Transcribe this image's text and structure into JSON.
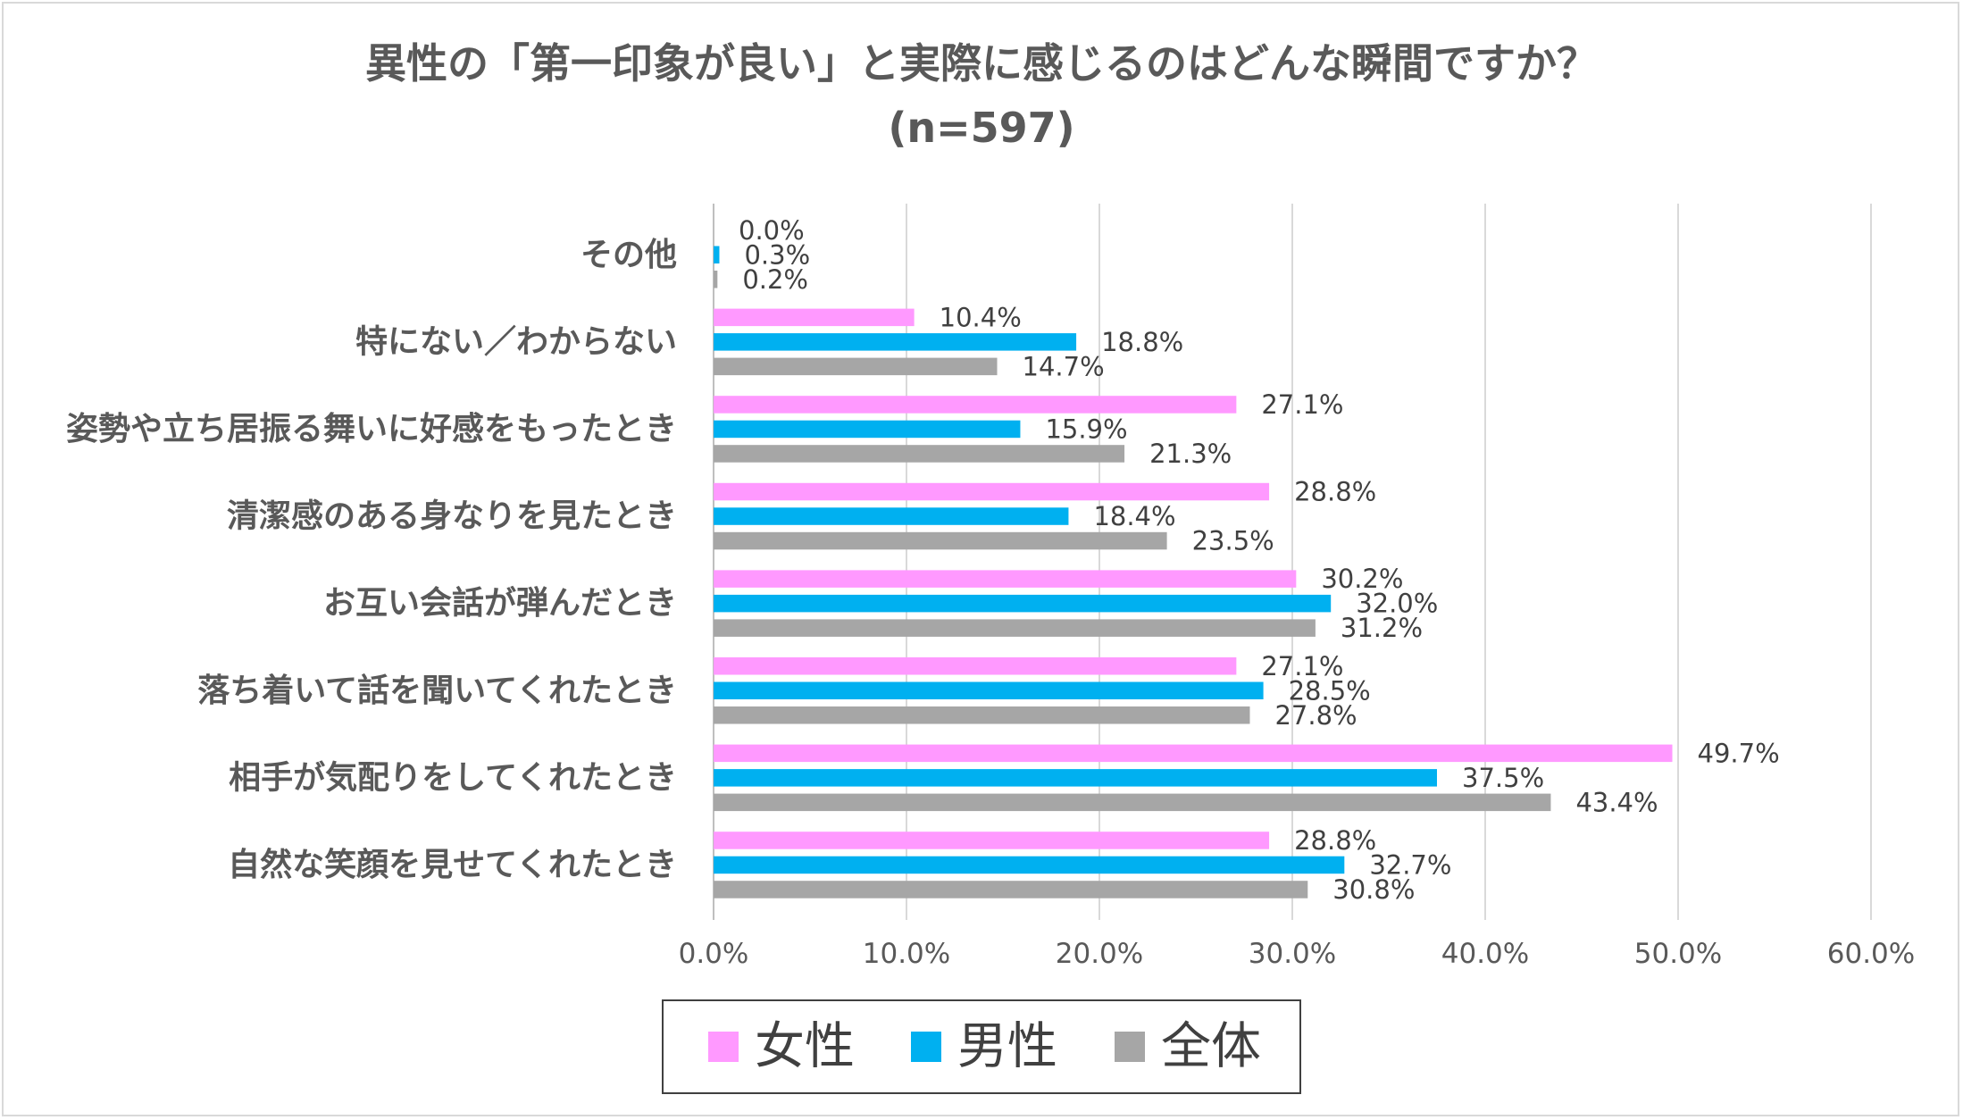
{
  "chart_data": {
    "type": "bar",
    "orientation": "horizontal",
    "title": "異性の「第一印象が良い」と実際に感じるのはどんな瞬間ですか？",
    "subtitle": "(n=597)",
    "categories": [
      "その他",
      "特にない／わからない",
      "姿勢や立ち居振る舞いに好感をもったとき",
      "清潔感のある身なりを見たとき",
      "お互い会話が弾んだとき",
      "落ち着いて話を聞いてくれたとき",
      "相手が気配りをしてくれたとき",
      "自然な笑顔を見せてくれたとき"
    ],
    "series": [
      {
        "name": "女性",
        "color": "#ff99ff",
        "values": [
          0.0,
          10.4,
          27.1,
          28.8,
          30.2,
          27.1,
          49.7,
          28.8
        ]
      },
      {
        "name": "男性",
        "color": "#00b0f0",
        "values": [
          0.3,
          18.8,
          15.9,
          18.4,
          32.0,
          28.5,
          37.5,
          32.7
        ]
      },
      {
        "name": "全体",
        "color": "#a6a6a6",
        "values": [
          0.2,
          14.7,
          21.3,
          23.5,
          31.2,
          27.8,
          43.4,
          30.8
        ]
      }
    ],
    "value_labels": [
      [
        "0.0%",
        "10.4%",
        "27.1%",
        "28.8%",
        "30.2%",
        "27.1%",
        "49.7%",
        "28.8%"
      ],
      [
        "0.3%",
        "18.8%",
        "15.9%",
        "18.4%",
        "32.0%",
        "28.5%",
        "37.5%",
        "32.7%"
      ],
      [
        "0.2%",
        "14.7%",
        "21.3%",
        "23.5%",
        "31.2%",
        "27.8%",
        "43.4%",
        "30.8%"
      ]
    ],
    "xlim": [
      0,
      60
    ],
    "xticks": [
      0,
      10,
      20,
      30,
      40,
      50,
      60
    ],
    "xtick_labels": [
      "0.0%",
      "10.0%",
      "20.0%",
      "30.0%",
      "40.0%",
      "50.0%",
      "60.0%"
    ],
    "xlabel": "",
    "ylabel": "",
    "grid": "vertical",
    "legend_position": "bottom"
  }
}
